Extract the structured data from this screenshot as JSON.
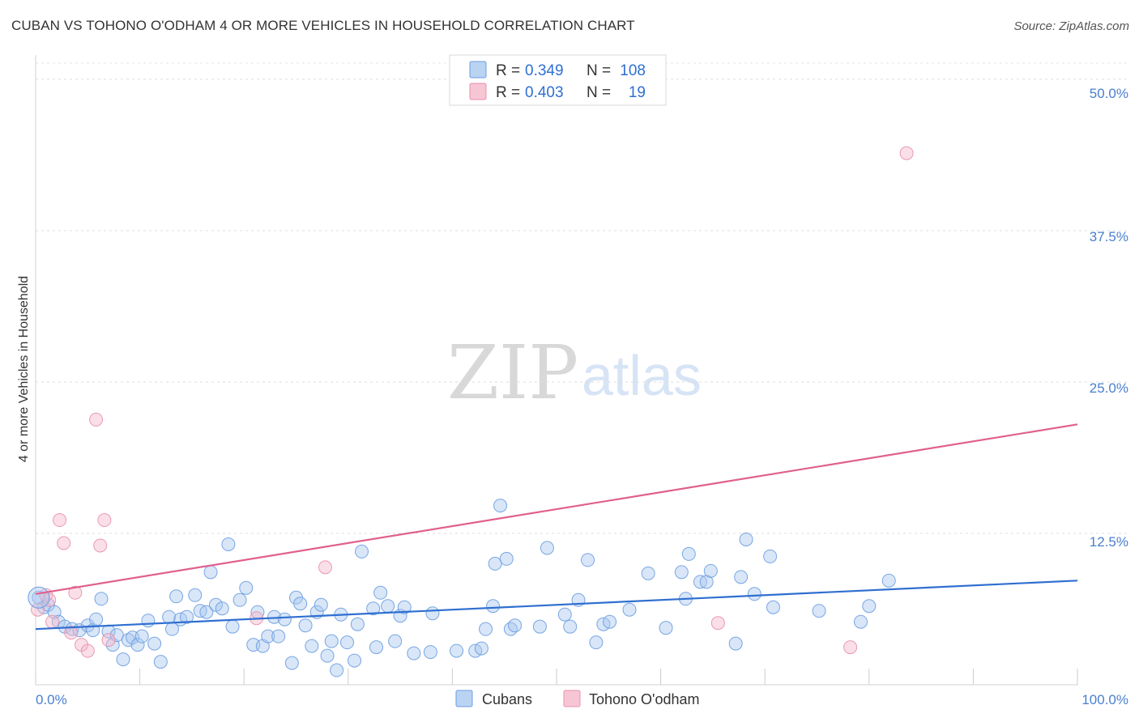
{
  "header": {
    "title": "CUBAN VS TOHONO O'ODHAM 4 OR MORE VEHICLES IN HOUSEHOLD CORRELATION CHART",
    "source": "Source: ZipAtlas.com"
  },
  "watermark": {
    "zip": "ZIP",
    "atlas": "atlas"
  },
  "legend": {
    "r_label": "R =",
    "n_label": "N =",
    "rows": [
      {
        "r": "0.349",
        "n": "108",
        "color": "#a9c8f0"
      },
      {
        "r": "0.403",
        "n": "19",
        "color": "#f5b8cb"
      }
    ]
  },
  "bottom_legend": [
    {
      "label": "Cubans",
      "color": "#a9c8f0"
    },
    {
      "label": "Tohono O'odham",
      "color": "#f5b8cb"
    }
  ],
  "chart_data": {
    "type": "scatter",
    "title": "CUBAN VS TOHONO O'ODHAM 4 OR MORE VEHICLES IN HOUSEHOLD CORRELATION CHART",
    "xlabel": "",
    "ylabel": "4 or more Vehicles in Household",
    "xlim": [
      0,
      100
    ],
    "ylim": [
      0,
      52
    ],
    "x_tick_labels": [
      "0.0%",
      "100.0%"
    ],
    "y_ticks": [
      12.5,
      25.0,
      37.5,
      50.0
    ],
    "y_tick_labels": [
      "12.5%",
      "25.0%",
      "37.5%",
      "50.0%"
    ],
    "series": [
      {
        "name": "Cubans",
        "color": "#a9c8f0",
        "stroke": "#6b9de0",
        "trend": {
          "x": [
            0,
            100
          ],
          "y": [
            4.6,
            8.6
          ]
        },
        "trend_color": "#2f6fd0",
        "points": [
          [
            0.3,
            7.2
          ],
          [
            0.8,
            6.4
          ],
          [
            1.2,
            6.6
          ],
          [
            1.8,
            6.0
          ],
          [
            2.2,
            5.2
          ],
          [
            2.8,
            4.8
          ],
          [
            3.5,
            4.6
          ],
          [
            4.2,
            4.5
          ],
          [
            5.0,
            4.9
          ],
          [
            5.5,
            4.5
          ],
          [
            5.8,
            5.4
          ],
          [
            6.3,
            7.1
          ],
          [
            7.0,
            4.4
          ],
          [
            7.4,
            3.3
          ],
          [
            7.8,
            4.1
          ],
          [
            8.4,
            2.1
          ],
          [
            8.9,
            3.7
          ],
          [
            9.3,
            3.9
          ],
          [
            9.8,
            3.3
          ],
          [
            10.2,
            4.0
          ],
          [
            10.8,
            5.3
          ],
          [
            11.4,
            3.4
          ],
          [
            12.0,
            1.9
          ],
          [
            12.8,
            5.6
          ],
          [
            13.1,
            4.6
          ],
          [
            13.5,
            7.3
          ],
          [
            13.9,
            5.4
          ],
          [
            14.5,
            5.6
          ],
          [
            15.3,
            7.4
          ],
          [
            15.8,
            6.1
          ],
          [
            16.4,
            6.0
          ],
          [
            16.8,
            9.3
          ],
          [
            17.3,
            6.6
          ],
          [
            17.9,
            6.3
          ],
          [
            18.5,
            11.6
          ],
          [
            18.9,
            4.8
          ],
          [
            19.6,
            7.0
          ],
          [
            20.2,
            8.0
          ],
          [
            20.9,
            3.3
          ],
          [
            21.3,
            6.0
          ],
          [
            21.8,
            3.2
          ],
          [
            22.3,
            4.0
          ],
          [
            22.9,
            5.6
          ],
          [
            23.3,
            4.0
          ],
          [
            23.9,
            5.4
          ],
          [
            24.6,
            1.8
          ],
          [
            25.0,
            7.2
          ],
          [
            25.4,
            6.7
          ],
          [
            25.9,
            4.9
          ],
          [
            26.5,
            3.2
          ],
          [
            27.0,
            6.0
          ],
          [
            27.4,
            6.6
          ],
          [
            28.0,
            2.4
          ],
          [
            28.4,
            3.6
          ],
          [
            28.9,
            1.2
          ],
          [
            29.3,
            5.8
          ],
          [
            29.9,
            3.5
          ],
          [
            30.6,
            2.0
          ],
          [
            30.9,
            5.0
          ],
          [
            31.3,
            11.0
          ],
          [
            32.4,
            6.3
          ],
          [
            32.7,
            3.1
          ],
          [
            33.1,
            7.6
          ],
          [
            33.8,
            6.5
          ],
          [
            34.5,
            3.6
          ],
          [
            35.0,
            5.7
          ],
          [
            35.4,
            6.4
          ],
          [
            36.3,
            2.6
          ],
          [
            37.9,
            2.7
          ],
          [
            38.1,
            5.9
          ],
          [
            40.4,
            2.8
          ],
          [
            42.2,
            2.8
          ],
          [
            42.8,
            3.0
          ],
          [
            43.2,
            4.6
          ],
          [
            43.9,
            6.5
          ],
          [
            44.1,
            10.0
          ],
          [
            44.6,
            14.8
          ],
          [
            45.2,
            10.4
          ],
          [
            45.6,
            4.6
          ],
          [
            46.0,
            4.9
          ],
          [
            48.4,
            4.8
          ],
          [
            49.1,
            11.3
          ],
          [
            50.8,
            5.8
          ],
          [
            51.3,
            4.8
          ],
          [
            52.1,
            7.0
          ],
          [
            53.0,
            10.3
          ],
          [
            53.8,
            3.5
          ],
          [
            54.5,
            5.0
          ],
          [
            55.1,
            5.2
          ],
          [
            57.0,
            6.2
          ],
          [
            58.8,
            9.2
          ],
          [
            60.5,
            4.7
          ],
          [
            62.0,
            9.3
          ],
          [
            62.4,
            7.1
          ],
          [
            62.7,
            10.8
          ],
          [
            63.8,
            8.5
          ],
          [
            64.4,
            8.5
          ],
          [
            64.8,
            9.4
          ],
          [
            67.2,
            3.4
          ],
          [
            67.7,
            8.9
          ],
          [
            68.2,
            12.0
          ],
          [
            69.0,
            7.5
          ],
          [
            70.5,
            10.6
          ],
          [
            70.8,
            6.4
          ],
          [
            75.2,
            6.1
          ],
          [
            79.2,
            5.2
          ],
          [
            80.0,
            6.5
          ],
          [
            81.9,
            8.6
          ]
        ]
      },
      {
        "name": "Tohono O'odham",
        "color": "#f5b8cb",
        "stroke": "#e890aa",
        "trend": {
          "x": [
            0,
            100
          ],
          "y": [
            7.5,
            21.5
          ]
        },
        "trend_color": "#e0608c",
        "points": [
          [
            0.2,
            6.2
          ],
          [
            1.0,
            7.4
          ],
          [
            1.6,
            5.2
          ],
          [
            2.3,
            13.6
          ],
          [
            2.7,
            11.7
          ],
          [
            3.4,
            4.3
          ],
          [
            3.8,
            7.6
          ],
          [
            4.4,
            3.3
          ],
          [
            5.0,
            2.8
          ],
          [
            5.8,
            21.9
          ],
          [
            6.2,
            11.5
          ],
          [
            6.6,
            13.6
          ],
          [
            7.0,
            3.7
          ],
          [
            21.2,
            5.5
          ],
          [
            27.8,
            9.7
          ],
          [
            65.5,
            5.1
          ],
          [
            78.2,
            3.1
          ],
          [
            83.6,
            43.9
          ],
          [
            1.3,
            7.0
          ]
        ]
      }
    ]
  }
}
